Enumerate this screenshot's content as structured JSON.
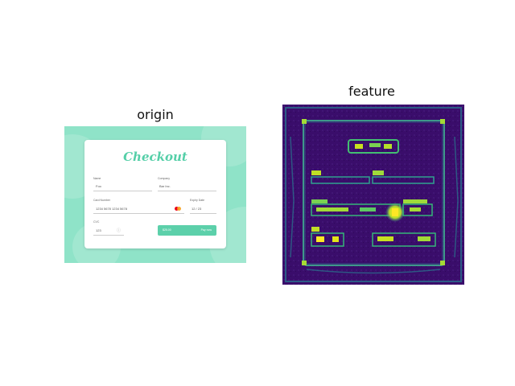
{
  "panels": {
    "origin_title": "origin",
    "feature_title": "feature"
  },
  "checkout": {
    "title": "Checkout",
    "name_label": "Name",
    "name_value": "Foo",
    "company_label": "Company",
    "company_value": "Bar Inc.",
    "card_label": "Card Number",
    "card_value": "1234  5678  1234  5678",
    "expiry_label": "Expiry Date",
    "expiry_value": "12 / 23",
    "cvc_label": "CVC",
    "cvc_value": "123",
    "pay_label": "$25.00",
    "pay_action": "Pay now"
  },
  "colors": {
    "background_mint": "#8fe3c8",
    "accent_green": "#55cfa8",
    "button_green": "#5cd0aa",
    "feature_background": "#3b0f6e",
    "feature_highlight": "#f5e51b",
    "feature_mid": "#2fa28e"
  }
}
